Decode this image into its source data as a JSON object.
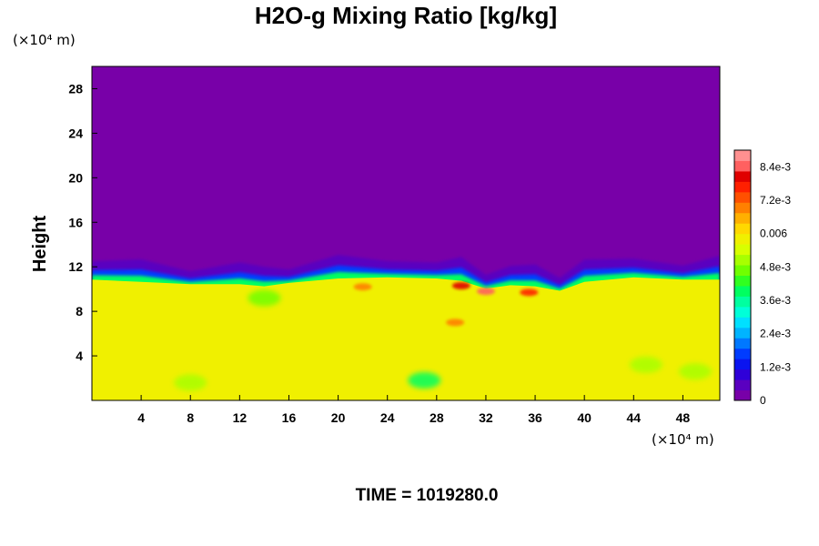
{
  "chart_data": {
    "type": "heatmap",
    "title": "H2O-g Mixing Ratio [kg/kg]",
    "xlabel": "",
    "ylabel": "Height",
    "x_unit": "(×10⁴ m)",
    "y_unit": "(×10⁴ m)",
    "xlim": [
      0,
      51
    ],
    "ylim": [
      0,
      30
    ],
    "x_ticks": [
      "4",
      "8",
      "12",
      "16",
      "20",
      "24",
      "28",
      "32",
      "36",
      "40",
      "44",
      "48"
    ],
    "x_tick_values": [
      4,
      8,
      12,
      16,
      20,
      24,
      28,
      32,
      36,
      40,
      44,
      48
    ],
    "y_ticks": [
      "4",
      "8",
      "12",
      "16",
      "20",
      "24",
      "28"
    ],
    "y_tick_values": [
      4,
      8,
      12,
      16,
      20,
      24,
      28
    ],
    "colorbar": {
      "min": 0,
      "max": 0.009,
      "tick_labels": [
        "0",
        "1.2e-3",
        "2.4e-3",
        "3.6e-3",
        "4.8e-3",
        "0.006",
        "7.2e-3",
        "8.4e-3"
      ],
      "tick_values": [
        0,
        0.0012,
        0.0024,
        0.0036,
        0.0048,
        0.006,
        0.0072,
        0.0084
      ],
      "colors": [
        "#7800a8",
        "#5a00c0",
        "#2f00d8",
        "#0a14f0",
        "#003cff",
        "#0078ff",
        "#00b4ff",
        "#00e0ff",
        "#00ffd8",
        "#00ffa0",
        "#00ff60",
        "#30ff20",
        "#70ff00",
        "#a8ff00",
        "#d8ff00",
        "#f0f000",
        "#ffd800",
        "#ffb000",
        "#ff8000",
        "#ff5000",
        "#ff2000",
        "#e00000",
        "#ff6060",
        "#ff9090"
      ]
    },
    "field": {
      "upper_value": 0,
      "lower_value": 0.0059,
      "interface_height_mean": 10.8,
      "interface_profile": [
        [
          0,
          11.0
        ],
        [
          4,
          10.8
        ],
        [
          8,
          10.6
        ],
        [
          12,
          10.6
        ],
        [
          14,
          10.4
        ],
        [
          16,
          10.7
        ],
        [
          20,
          11.1
        ],
        [
          24,
          11.2
        ],
        [
          28,
          11.1
        ],
        [
          30,
          10.9
        ],
        [
          32,
          10.2
        ],
        [
          34,
          10.5
        ],
        [
          36,
          10.4
        ],
        [
          38,
          10.0
        ],
        [
          40,
          10.8
        ],
        [
          44,
          11.2
        ],
        [
          48,
          11.0
        ],
        [
          51,
          11.0
        ]
      ],
      "dry_patches": [
        {
          "x": 14,
          "y": 9.2,
          "value": 0.0045
        },
        {
          "x": 27,
          "y": 1.8,
          "value": 0.004
        },
        {
          "x": 8,
          "y": 1.6,
          "value": 0.005
        },
        {
          "x": 45,
          "y": 3.2,
          "value": 0.005
        },
        {
          "x": 49,
          "y": 2.6,
          "value": 0.005
        }
      ],
      "moist_patches": [
        {
          "x": 32,
          "y": 9.8,
          "value": 0.0085
        },
        {
          "x": 30,
          "y": 10.3,
          "value": 0.008
        },
        {
          "x": 35.5,
          "y": 9.7,
          "value": 0.0075
        },
        {
          "x": 29.5,
          "y": 7.0,
          "value": 0.007
        },
        {
          "x": 22,
          "y": 10.2,
          "value": 0.0068
        }
      ]
    },
    "legend_position": "right",
    "grid": false
  },
  "footer": {
    "time_label": "TIME = 1019280.0"
  }
}
